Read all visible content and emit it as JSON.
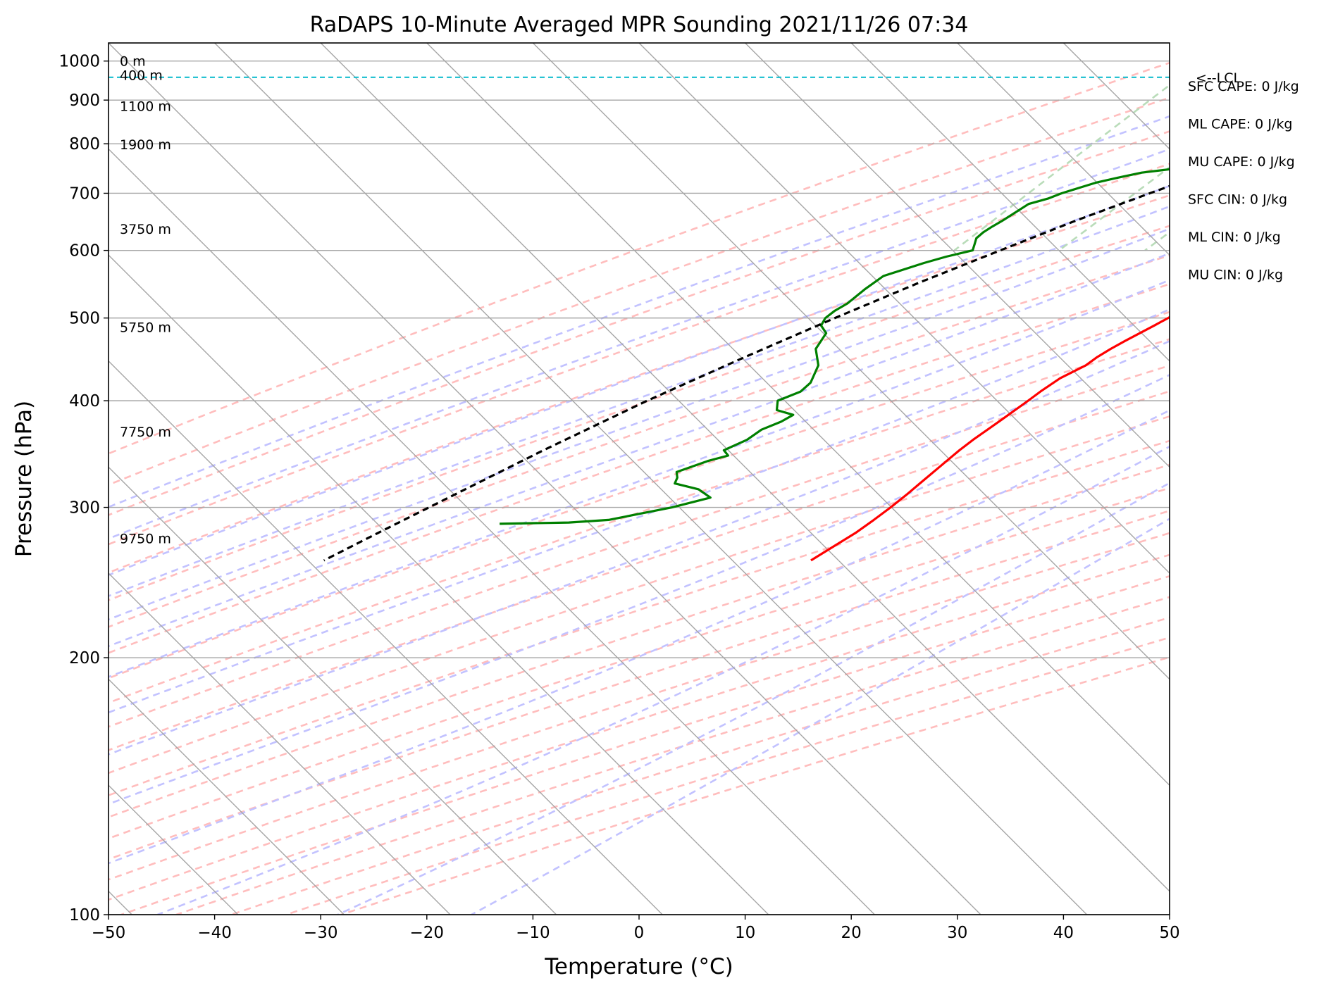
{
  "chart_data": {
    "type": "skew-t log-p sounding",
    "title": "RaDAPS 10-Minute Averaged MPR Sounding 2021/11/26 07:34",
    "xlabel": "Temperature (°C)",
    "ylabel": "Pressure (hPa)",
    "xlim": [
      -50,
      50
    ],
    "ylim_hpa": [
      1050,
      100
    ],
    "y_scale": "log",
    "grid": true,
    "x_ticks": [
      "−50",
      "−40",
      "−30",
      "−20",
      "−10",
      "0",
      "10",
      "20",
      "30",
      "40",
      "50"
    ],
    "x_tick_values": [
      -50,
      -40,
      -30,
      -20,
      -10,
      0,
      10,
      20,
      30,
      40,
      50
    ],
    "y_ticks": [
      "100",
      "200",
      "300",
      "400",
      "500",
      "600",
      "700",
      "800",
      "900",
      "1000"
    ],
    "y_tick_values": [
      100,
      200,
      300,
      400,
      500,
      600,
      700,
      800,
      900,
      1000
    ],
    "colors": {
      "temperature": "#ff0000",
      "dewpoint": "#008000",
      "parcel": "#000000",
      "lcl": "#17becf",
      "isotherm": "#a6a6a6",
      "dry_adiabat": "#ffbdbd",
      "moist_adiabat": "#c2c2ff",
      "mixing_ratio": "#b9dcb9"
    },
    "series": [
      {
        "key": "temperature",
        "points": [
          [
            1000,
            5.8
          ],
          [
            990,
            4.6
          ],
          [
            980,
            3.8
          ],
          [
            970,
            3.4
          ],
          [
            960,
            3.2
          ],
          [
            950,
            3.3
          ],
          [
            940,
            3.5
          ],
          [
            930,
            3.7
          ],
          [
            920,
            3.8
          ],
          [
            910,
            3.8
          ],
          [
            900,
            3.9
          ],
          [
            890,
            4.0
          ],
          [
            880,
            4.1
          ],
          [
            870,
            4.3
          ],
          [
            860,
            4.4
          ],
          [
            850,
            4.5
          ],
          [
            840,
            4.8
          ],
          [
            830,
            4.8
          ],
          [
            820,
            4.3
          ],
          [
            810,
            3.7
          ],
          [
            800,
            3.3
          ],
          [
            790,
            3.6
          ],
          [
            780,
            3.7
          ],
          [
            770,
            3.6
          ],
          [
            760,
            3.2
          ],
          [
            750,
            2.9
          ],
          [
            740,
            2.5
          ],
          [
            730,
            2.0
          ],
          [
            720,
            1.7
          ],
          [
            710,
            1.4
          ],
          [
            700,
            1.2
          ],
          [
            690,
            0.8
          ],
          [
            680,
            0.4
          ],
          [
            660,
            -0.4
          ],
          [
            640,
            -1.2
          ],
          [
            620,
            -1.8
          ],
          [
            600,
            -2.0
          ],
          [
            590,
            -2.1
          ],
          [
            580,
            -2.5
          ],
          [
            560,
            -3.5
          ],
          [
            540,
            -4.5
          ],
          [
            520,
            -5.4
          ],
          [
            500,
            -6.4
          ],
          [
            490,
            -7.0
          ],
          [
            470,
            -8.3
          ],
          [
            460,
            -8.9
          ],
          [
            450,
            -9.4
          ],
          [
            440,
            -9.7
          ],
          [
            425,
            -10.9
          ],
          [
            410,
            -11.5
          ],
          [
            400,
            -11.8
          ],
          [
            380,
            -12.5
          ],
          [
            360,
            -13.3
          ],
          [
            350,
            -13.6
          ],
          [
            340,
            -13.8
          ],
          [
            320,
            -14.2
          ],
          [
            310,
            -14.4
          ],
          [
            300,
            -14.7
          ],
          [
            290,
            -15.1
          ],
          [
            280,
            -15.6
          ],
          [
            270,
            -16.4
          ],
          [
            260,
            -17.2
          ]
        ]
      },
      {
        "key": "dewpoint",
        "points": [
          [
            1000,
            2.7
          ],
          [
            995,
            0.4
          ],
          [
            990,
            -0.4
          ],
          [
            980,
            -0.2
          ],
          [
            970,
            0.3
          ],
          [
            963,
            0.9
          ],
          [
            957,
            2.8
          ],
          [
            950,
            3.2
          ],
          [
            940,
            3.3
          ],
          [
            930,
            3.5
          ],
          [
            920,
            3.7
          ],
          [
            910,
            3.9
          ],
          [
            900,
            4.0
          ],
          [
            890,
            3.5
          ],
          [
            880,
            2.7
          ],
          [
            870,
            1.8
          ],
          [
            860,
            -1.3
          ],
          [
            850,
            -2.5
          ],
          [
            840,
            -3.7
          ],
          [
            830,
            -4.3
          ],
          [
            820,
            -5.3
          ],
          [
            810,
            -6.2
          ],
          [
            805,
            -6.4
          ],
          [
            800,
            -6.5
          ],
          [
            790,
            -7.5
          ],
          [
            770,
            -13.8
          ],
          [
            750,
            -19.2
          ],
          [
            740,
            -22.6
          ],
          [
            730,
            -24.4
          ],
          [
            720,
            -26.0
          ],
          [
            710,
            -27.1
          ],
          [
            700,
            -28.2
          ],
          [
            690,
            -29.0
          ],
          [
            680,
            -30.3
          ],
          [
            660,
            -30.9
          ],
          [
            650,
            -31.2
          ],
          [
            640,
            -31.6
          ],
          [
            630,
            -31.9
          ],
          [
            620,
            -32.0
          ],
          [
            610,
            -31.6
          ],
          [
            600,
            -31.2
          ],
          [
            590,
            -33.1
          ],
          [
            580,
            -34.6
          ],
          [
            560,
            -37.2
          ],
          [
            540,
            -37.7
          ],
          [
            520,
            -38.0
          ],
          [
            510,
            -38.5
          ],
          [
            500,
            -38.7
          ],
          [
            490,
            -38.4
          ],
          [
            480,
            -37.2
          ],
          [
            460,
            -36.7
          ],
          [
            440,
            -34.9
          ],
          [
            420,
            -34.0
          ],
          [
            410,
            -34.1
          ],
          [
            400,
            -35.4
          ],
          [
            390,
            -34.6
          ],
          [
            385,
            -32.6
          ],
          [
            378,
            -33.1
          ],
          [
            370,
            -34.2
          ],
          [
            360,
            -34.6
          ],
          [
            350,
            -35.8
          ],
          [
            345,
            -34.9
          ],
          [
            340,
            -36.3
          ],
          [
            330,
            -38.2
          ],
          [
            325,
            -37.6
          ],
          [
            320,
            -37.3
          ],
          [
            315,
            -34.5
          ],
          [
            308,
            -32.6
          ],
          [
            300,
            -35.3
          ],
          [
            290,
            -40.1
          ],
          [
            288,
            -43.6
          ],
          [
            287,
            -50.0
          ]
        ]
      },
      {
        "key": "parcel",
        "points": [
          [
            1000,
            5.6
          ],
          [
            980,
            4.0
          ],
          [
            960,
            2.5
          ],
          [
            957,
            2.8
          ],
          [
            900,
            -2.9
          ],
          [
            850,
            -7.1
          ],
          [
            800,
            -11.4
          ],
          [
            750,
            -15.6
          ],
          [
            700,
            -19.9
          ],
          [
            650,
            -24.3
          ],
          [
            600,
            -28.6
          ],
          [
            550,
            -33.2
          ],
          [
            500,
            -37.8
          ],
          [
            450,
            -42.6
          ],
          [
            400,
            -47.7
          ],
          [
            350,
            -52.8
          ],
          [
            300,
            -58.2
          ],
          [
            280,
            -60.6
          ],
          [
            260,
            -63.1
          ]
        ]
      }
    ],
    "lcl_hpa": 957,
    "lcl_label": "<--LCL",
    "height_labels": [
      {
        "label": "9750 m",
        "hpa": 276
      },
      {
        "label": "7750 m",
        "hpa": 368
      },
      {
        "label": "5750 m",
        "hpa": 488
      },
      {
        "label": "3750 m",
        "hpa": 636
      },
      {
        "label": "1900 m",
        "hpa": 799
      },
      {
        "label": "1100 m",
        "hpa": 886
      },
      {
        "label": "400 m",
        "hpa": 963
      },
      {
        "label": "0 m",
        "hpa": 1000
      }
    ],
    "annotations": [
      "SFC CAPE: 0 J/kg",
      "ML CAPE: 0 J/kg",
      "MU CAPE: 0 J/kg",
      "SFC CIN: 0 J/kg",
      "ML CIN: 0 J/kg",
      "MU CIN: 0 J/kg"
    ]
  }
}
